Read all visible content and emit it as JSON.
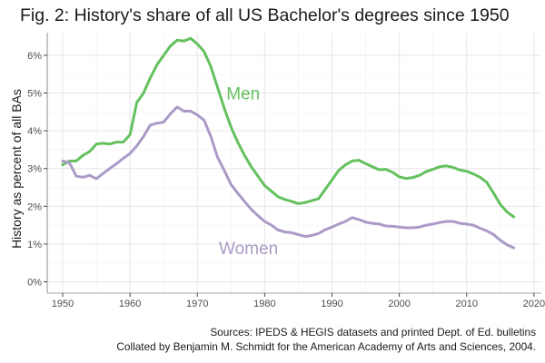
{
  "chart_data": {
    "type": "line",
    "title": "Fig. 2: History's share of all US Bachelor's degrees since 1950",
    "xlabel": "",
    "ylabel": "History as percent of all BAs",
    "xlim": [
      1947.7,
      2021.1
    ],
    "ylim": [
      -0.3,
      6.6
    ],
    "x_ticks": [
      1950,
      1960,
      1970,
      1980,
      1990,
      2000,
      2010,
      2020
    ],
    "y_ticks": [
      0,
      1,
      2,
      3,
      4,
      5,
      6
    ],
    "y_tick_labels": [
      "0%",
      "1%",
      "2%",
      "3%",
      "4%",
      "5%",
      "6%"
    ],
    "grid": true,
    "legend": "direct labels on lines",
    "series": [
      {
        "name": "Men",
        "color": "#64c15e",
        "label_at": [
          1976.8,
          5.0
        ],
        "x": [
          1950,
          1951,
          1952,
          1953,
          1954,
          1955,
          1956,
          1957,
          1958,
          1959,
          1960,
          1961,
          1962,
          1963,
          1964,
          1965,
          1966,
          1967,
          1968,
          1969,
          1970,
          1971,
          1972,
          1973,
          1974,
          1975,
          1976,
          1977,
          1978,
          1979,
          1980,
          1981,
          1982,
          1983,
          1984,
          1985,
          1986,
          1987,
          1988,
          1989,
          1990,
          1991,
          1992,
          1993,
          1994,
          1995,
          1996,
          1997,
          1998,
          1999,
          2000,
          2001,
          2002,
          2003,
          2004,
          2005,
          2006,
          2007,
          2008,
          2009,
          2010,
          2011,
          2012,
          2013,
          2014,
          2015,
          2016,
          2017
        ],
        "values": [
          3.1,
          3.2,
          3.2,
          3.35,
          3.45,
          3.65,
          3.67,
          3.65,
          3.7,
          3.7,
          3.9,
          4.75,
          5.0,
          5.4,
          5.75,
          6.0,
          6.25,
          6.4,
          6.38,
          6.45,
          6.3,
          6.1,
          5.7,
          5.15,
          4.6,
          4.1,
          3.7,
          3.35,
          3.05,
          2.8,
          2.55,
          2.4,
          2.25,
          2.18,
          2.13,
          2.07,
          2.1,
          2.15,
          2.2,
          2.45,
          2.7,
          2.95,
          3.1,
          3.2,
          3.22,
          3.13,
          3.05,
          2.97,
          2.98,
          2.9,
          2.78,
          2.74,
          2.76,
          2.82,
          2.92,
          2.98,
          3.05,
          3.07,
          3.03,
          2.96,
          2.93,
          2.86,
          2.77,
          2.63,
          2.35,
          2.05,
          1.85,
          1.72
        ]
      },
      {
        "name": "Women",
        "color": "#ab9ac7",
        "label_at": [
          1977.6,
          0.9
        ],
        "x": [
          1950,
          1951,
          1952,
          1953,
          1954,
          1955,
          1956,
          1957,
          1958,
          1959,
          1960,
          1961,
          1962,
          1963,
          1964,
          1965,
          1966,
          1967,
          1968,
          1969,
          1970,
          1971,
          1972,
          1973,
          1974,
          1975,
          1976,
          1977,
          1978,
          1979,
          1980,
          1981,
          1982,
          1983,
          1984,
          1985,
          1986,
          1987,
          1988,
          1989,
          1990,
          1991,
          1992,
          1993,
          1994,
          1995,
          1996,
          1997,
          1998,
          1999,
          2000,
          2001,
          2002,
          2003,
          2004,
          2005,
          2006,
          2007,
          2008,
          2009,
          2010,
          2011,
          2012,
          2013,
          2014,
          2015,
          2016,
          2017
        ],
        "values": [
          3.2,
          3.15,
          2.8,
          2.77,
          2.82,
          2.73,
          2.87,
          3.0,
          3.13,
          3.27,
          3.4,
          3.6,
          3.85,
          4.15,
          4.2,
          4.23,
          4.45,
          4.63,
          4.52,
          4.52,
          4.42,
          4.28,
          3.85,
          3.3,
          2.95,
          2.58,
          2.35,
          2.13,
          1.92,
          1.75,
          1.6,
          1.5,
          1.37,
          1.32,
          1.3,
          1.25,
          1.2,
          1.23,
          1.28,
          1.38,
          1.45,
          1.53,
          1.6,
          1.7,
          1.65,
          1.58,
          1.55,
          1.53,
          1.48,
          1.47,
          1.45,
          1.43,
          1.43,
          1.45,
          1.5,
          1.53,
          1.57,
          1.6,
          1.6,
          1.55,
          1.53,
          1.5,
          1.42,
          1.35,
          1.25,
          1.1,
          0.98,
          0.9
        ]
      }
    ]
  },
  "caption_lines": [
    "Sources: IPEDS & HEGIS datasets and printed Dept. of Ed. bulletins",
    "Collated by Benjamin M. Schmidt for the American Academy of Arts and Sciences, 2004."
  ]
}
